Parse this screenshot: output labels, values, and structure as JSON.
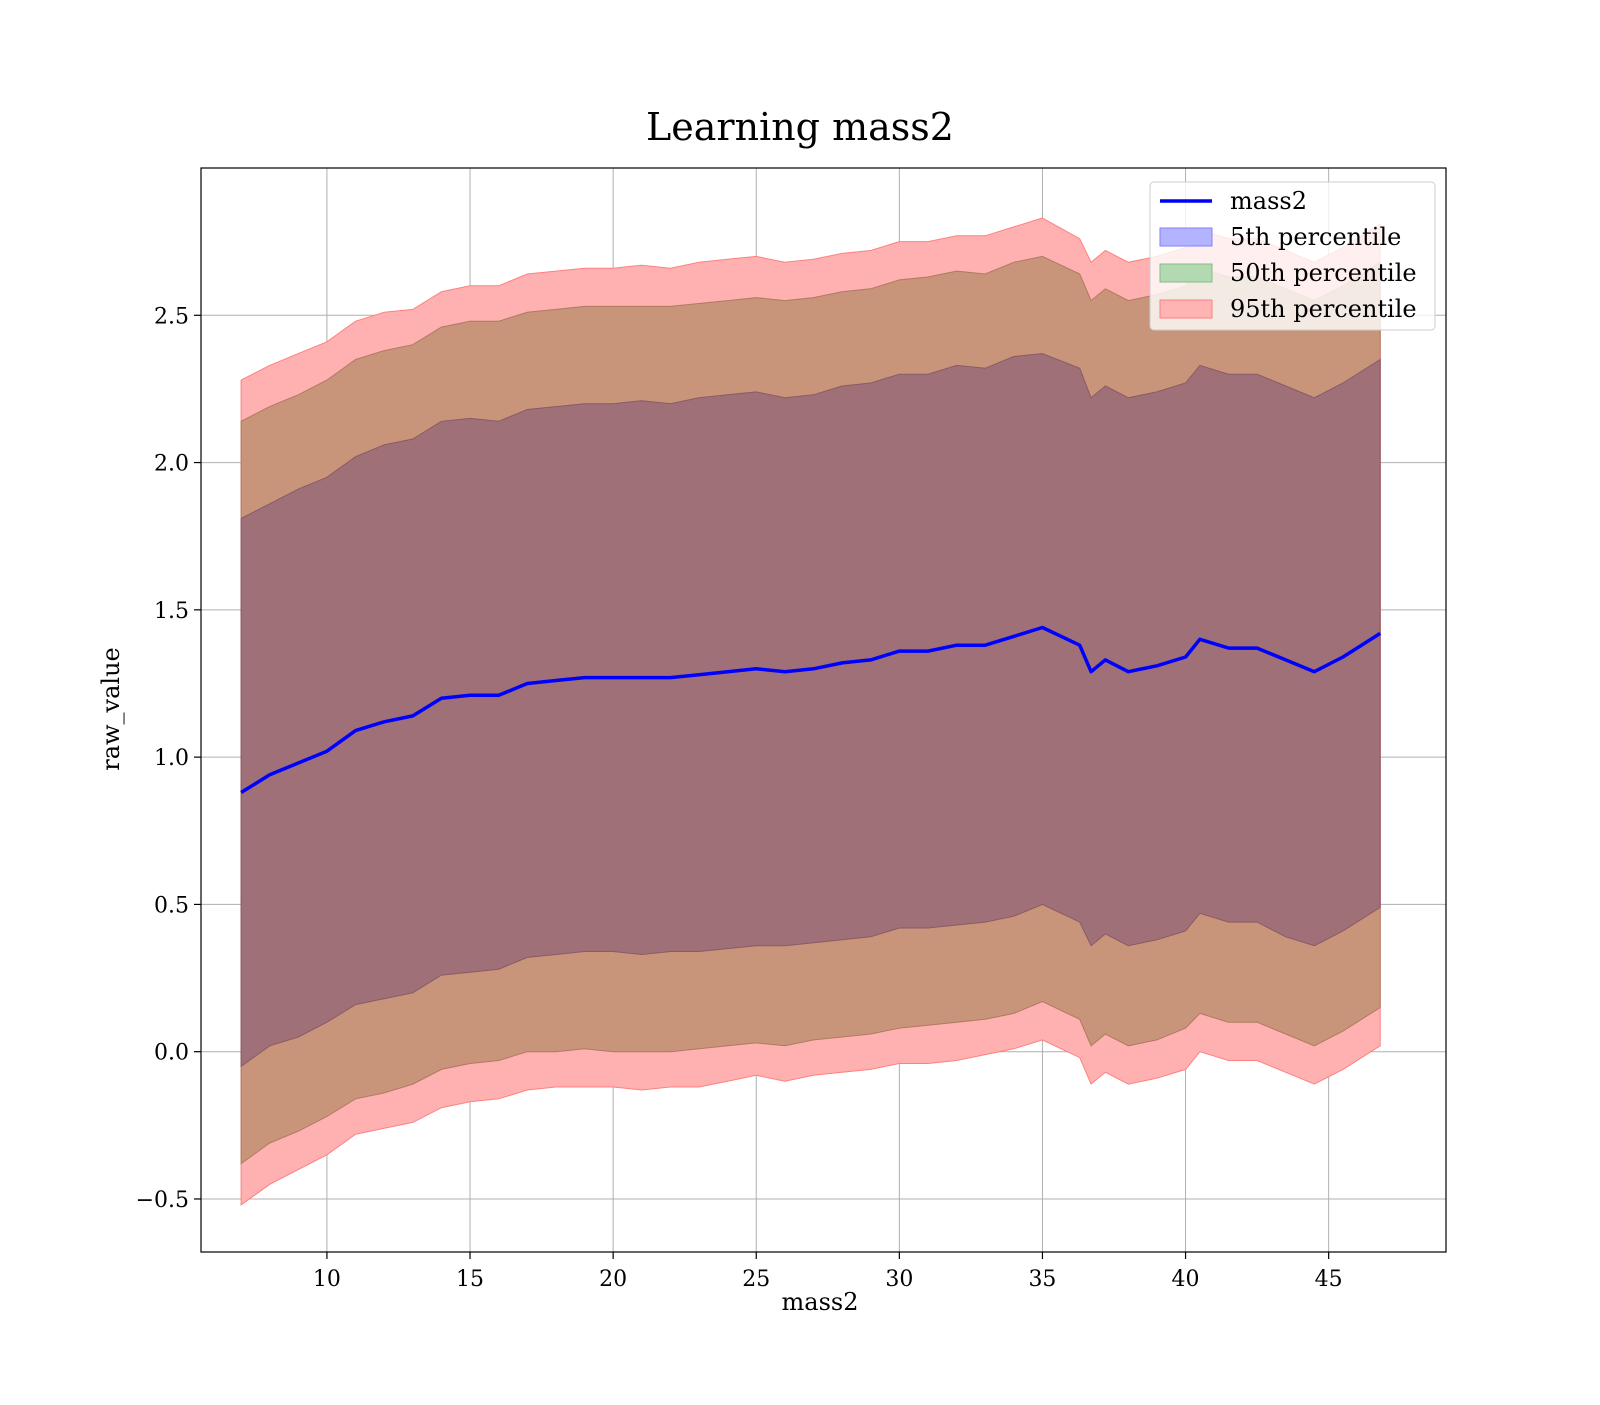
{
  "chart_data": {
    "type": "area",
    "title": "Learning mass2",
    "xlabel": "mass2",
    "ylabel": "raw_value",
    "xlim": [
      5.6,
      49.1
    ],
    "ylim": [
      -0.68,
      3.0
    ],
    "x_ticks": [
      10,
      15,
      20,
      25,
      30,
      35,
      40,
      45
    ],
    "x_tick_labels": [
      "10",
      "15",
      "20",
      "25",
      "30",
      "35",
      "40",
      "45"
    ],
    "y_ticks": [
      -0.5,
      0.0,
      0.5,
      1.0,
      1.5,
      2.0,
      2.5
    ],
    "y_tick_labels": [
      "−0.5",
      "0.0",
      "0.5",
      "1.0",
      "1.5",
      "2.0",
      "2.5"
    ],
    "grid": true,
    "legend_position": "top-right",
    "x": [
      7.0,
      8.0,
      9.0,
      10.0,
      11.0,
      12.0,
      13.0,
      14.0,
      15.0,
      16.0,
      17.0,
      18.0,
      19.0,
      20.0,
      21.0,
      22.0,
      23.0,
      24.0,
      25.0,
      26.0,
      27.0,
      28.0,
      29.0,
      30.0,
      31.0,
      32.0,
      33.0,
      34.0,
      35.0,
      36.3,
      36.7,
      37.2,
      38.0,
      39.0,
      40.0,
      40.5,
      41.5,
      42.5,
      43.5,
      44.5,
      45.5,
      46.8
    ],
    "series": [
      {
        "name": "mass2",
        "type": "line",
        "color": "#0000ff",
        "values": [
          0.88,
          0.94,
          0.98,
          1.02,
          1.09,
          1.12,
          1.14,
          1.2,
          1.21,
          1.21,
          1.25,
          1.26,
          1.27,
          1.27,
          1.27,
          1.27,
          1.28,
          1.29,
          1.3,
          1.29,
          1.3,
          1.32,
          1.33,
          1.36,
          1.36,
          1.38,
          1.38,
          1.41,
          1.44,
          1.38,
          1.29,
          1.33,
          1.29,
          1.31,
          1.34,
          1.4,
          1.37,
          1.37,
          1.33,
          1.29,
          1.34,
          1.42
        ]
      },
      {
        "name": "5th percentile",
        "type": "band",
        "color": "#0000ff",
        "opacity": 0.3,
        "lower": [
          -0.05,
          0.02,
          0.05,
          0.1,
          0.16,
          0.18,
          0.2,
          0.26,
          0.27,
          0.28,
          0.32,
          0.33,
          0.34,
          0.34,
          0.33,
          0.34,
          0.34,
          0.35,
          0.36,
          0.36,
          0.37,
          0.38,
          0.39,
          0.42,
          0.42,
          0.43,
          0.44,
          0.46,
          0.5,
          0.44,
          0.36,
          0.4,
          0.36,
          0.38,
          0.41,
          0.47,
          0.44,
          0.44,
          0.39,
          0.36,
          0.41,
          0.49
        ],
        "upper": [
          1.81,
          1.86,
          1.91,
          1.95,
          2.02,
          2.06,
          2.08,
          2.14,
          2.15,
          2.14,
          2.18,
          2.19,
          2.2,
          2.2,
          2.21,
          2.2,
          2.22,
          2.23,
          2.24,
          2.22,
          2.23,
          2.26,
          2.27,
          2.3,
          2.3,
          2.33,
          2.32,
          2.36,
          2.37,
          2.32,
          2.22,
          2.26,
          2.22,
          2.24,
          2.27,
          2.33,
          2.3,
          2.3,
          2.26,
          2.22,
          2.27,
          2.35
        ]
      },
      {
        "name": "50th percentile",
        "type": "band",
        "color": "#008000",
        "opacity": 0.3,
        "lower": [
          -0.05,
          0.02,
          0.05,
          0.1,
          0.16,
          0.18,
          0.2,
          0.26,
          0.27,
          0.28,
          0.32,
          0.33,
          0.34,
          0.34,
          0.33,
          0.34,
          0.34,
          0.35,
          0.36,
          0.36,
          0.37,
          0.38,
          0.39,
          0.42,
          0.42,
          0.43,
          0.44,
          0.46,
          0.5,
          0.44,
          0.36,
          0.4,
          0.36,
          0.38,
          0.41,
          0.47,
          0.44,
          0.44,
          0.39,
          0.36,
          0.41,
          0.49
        ],
        "upper": [
          1.81,
          1.86,
          1.91,
          1.95,
          2.02,
          2.06,
          2.08,
          2.14,
          2.15,
          2.14,
          2.18,
          2.19,
          2.2,
          2.2,
          2.21,
          2.2,
          2.22,
          2.23,
          2.24,
          2.22,
          2.23,
          2.26,
          2.27,
          2.3,
          2.3,
          2.33,
          2.32,
          2.36,
          2.37,
          2.32,
          2.22,
          2.26,
          2.22,
          2.24,
          2.27,
          2.33,
          2.3,
          2.3,
          2.26,
          2.22,
          2.27,
          2.35
        ]
      },
      {
        "name": "95th percentile",
        "type": "band",
        "color": "#ff0000",
        "opacity": 0.3,
        "lower": [
          -0.52,
          -0.45,
          -0.4,
          -0.35,
          -0.28,
          -0.26,
          -0.24,
          -0.19,
          -0.17,
          -0.16,
          -0.13,
          -0.12,
          -0.12,
          -0.12,
          -0.13,
          -0.12,
          -0.12,
          -0.1,
          -0.08,
          -0.1,
          -0.08,
          -0.07,
          -0.06,
          -0.04,
          -0.04,
          -0.03,
          -0.01,
          0.01,
          0.04,
          -0.02,
          -0.11,
          -0.07,
          -0.11,
          -0.09,
          -0.06,
          0.0,
          -0.03,
          -0.03,
          -0.07,
          -0.11,
          -0.06,
          0.02
        ]
      }
    ],
    "band_layers": [
      {
        "name": "outer-red-band",
        "color": "#ff0000",
        "opacity": 0.3,
        "lower": [
          -0.52,
          -0.45,
          -0.4,
          -0.35,
          -0.28,
          -0.26,
          -0.24,
          -0.19,
          -0.17,
          -0.16,
          -0.13,
          -0.12,
          -0.12,
          -0.12,
          -0.13,
          -0.12,
          -0.12,
          -0.1,
          -0.08,
          -0.1,
          -0.08,
          -0.07,
          -0.06,
          -0.04,
          -0.04,
          -0.03,
          -0.01,
          0.01,
          0.04,
          -0.02,
          -0.11,
          -0.07,
          -0.11,
          -0.09,
          -0.06,
          0.0,
          -0.03,
          -0.03,
          -0.07,
          -0.11,
          -0.06,
          0.02
        ],
        "upper": [
          2.28,
          2.33,
          2.37,
          2.41,
          2.48,
          2.51,
          2.52,
          2.58,
          2.6,
          2.6,
          2.64,
          2.65,
          2.66,
          2.66,
          2.67,
          2.66,
          2.68,
          2.69,
          2.7,
          2.68,
          2.69,
          2.71,
          2.72,
          2.75,
          2.75,
          2.77,
          2.77,
          2.8,
          2.83,
          2.76,
          2.68,
          2.72,
          2.68,
          2.7,
          2.73,
          2.79,
          2.76,
          2.76,
          2.72,
          2.68,
          2.73,
          2.81
        ]
      },
      {
        "name": "middle-brown-band",
        "color": "#ff0000",
        "opacity": 0.3,
        "lower": [
          -0.38,
          -0.31,
          -0.27,
          -0.22,
          -0.16,
          -0.14,
          -0.11,
          -0.06,
          -0.04,
          -0.03,
          0.0,
          0.0,
          0.01,
          0.0,
          0.0,
          0.0,
          0.01,
          0.02,
          0.03,
          0.02,
          0.04,
          0.05,
          0.06,
          0.08,
          0.09,
          0.1,
          0.11,
          0.13,
          0.17,
          0.11,
          0.02,
          0.06,
          0.02,
          0.04,
          0.08,
          0.13,
          0.1,
          0.1,
          0.06,
          0.02,
          0.07,
          0.15
        ],
        "upper": [
          2.14,
          2.19,
          2.23,
          2.28,
          2.35,
          2.38,
          2.4,
          2.46,
          2.48,
          2.48,
          2.51,
          2.52,
          2.53,
          2.53,
          2.53,
          2.53,
          2.54,
          2.55,
          2.56,
          2.55,
          2.56,
          2.58,
          2.59,
          2.62,
          2.63,
          2.65,
          2.64,
          2.68,
          2.7,
          2.64,
          2.55,
          2.59,
          2.55,
          2.57,
          2.6,
          2.66,
          2.63,
          2.63,
          2.59,
          2.55,
          2.6,
          2.68
        ]
      }
    ]
  },
  "legend": {
    "items": [
      {
        "label": "mass2",
        "kind": "line",
        "color": "#0000ff"
      },
      {
        "label": "5th percentile",
        "kind": "patch",
        "color": "#0000ff"
      },
      {
        "label": "50th percentile",
        "kind": "patch",
        "color": "#008000"
      },
      {
        "label": "95th percentile",
        "kind": "patch",
        "color": "#ff0000"
      }
    ]
  },
  "colors": {
    "grid": "#b0b0b0",
    "axis": "#000000",
    "purple_fill": "#a07078",
    "brown_fill": "#c8957a",
    "pink_fill": "#ffb0b0"
  }
}
